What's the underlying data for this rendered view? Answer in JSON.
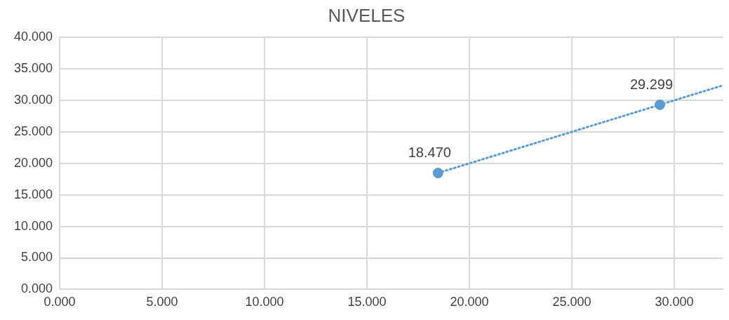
{
  "chart_data": {
    "type": "scatter",
    "title": "NIVELES",
    "xlim": [
      0,
      32.4
    ],
    "xticks": [
      {
        "value": 0,
        "label": "0.000"
      },
      {
        "value": 5,
        "label": "5.000"
      },
      {
        "value": 10,
        "label": "10.000"
      },
      {
        "value": 15,
        "label": "15.000"
      },
      {
        "value": 20,
        "label": "20.000"
      },
      {
        "value": 25,
        "label": "25.000"
      },
      {
        "value": 30,
        "label": "30.000"
      }
    ],
    "ylim": [
      0,
      40
    ],
    "yticks": [
      {
        "value": 0,
        "label": "0.000"
      },
      {
        "value": 5,
        "label": "5.000"
      },
      {
        "value": 10,
        "label": "10.000"
      },
      {
        "value": 15,
        "label": "15.000"
      },
      {
        "value": 20,
        "label": "20.000"
      },
      {
        "value": 25,
        "label": "25.000"
      },
      {
        "value": 30,
        "label": "30.000"
      },
      {
        "value": 35,
        "label": "35.000"
      },
      {
        "value": 40,
        "label": "40.000"
      }
    ],
    "grid": true,
    "legend": false,
    "marker": "circle",
    "series": [
      {
        "type": "scatter",
        "color": "#5b9bd5",
        "x": [
          18.47,
          29.299
        ],
        "values": [
          18.47,
          29.299
        ],
        "value_labels": [
          "18.470",
          "29.299"
        ]
      },
      {
        "type": "line",
        "color": "#5b9bd5",
        "line_style": "dotted",
        "marker": "none",
        "x": [
          18.47,
          32.4
        ],
        "values": [
          18.47,
          32.4
        ]
      }
    ]
  }
}
